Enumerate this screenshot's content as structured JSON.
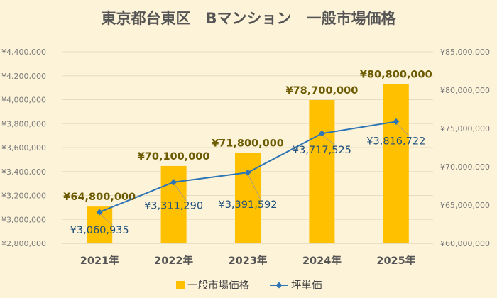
{
  "chart_data": {
    "type": "bar",
    "title": "東京都台東区　Bマンション　一般市場価格",
    "categories": [
      "2021年",
      "2022年",
      "2023年",
      "2024年",
      "2025年"
    ],
    "series": [
      {
        "name": "一般市場価格",
        "type": "bar",
        "axis": "right",
        "color": "#ffc000",
        "values": [
          64800000,
          70100000,
          71800000,
          78700000,
          80800000
        ],
        "labels": [
          "¥64,800,000",
          "¥70,100,000",
          "¥71,800,000",
          "¥78,700,000",
          "¥80,800,000"
        ]
      },
      {
        "name": "坪単価",
        "type": "line",
        "axis": "left",
        "color": "#2e75b6",
        "values": [
          3060935,
          3311290,
          3391592,
          3717525,
          3816722
        ],
        "labels": [
          "¥3,060,935",
          "¥3,311,290",
          "¥3,391,592",
          "¥3,717,525",
          "¥3,816,722"
        ]
      }
    ],
    "y_left": {
      "range": [
        2800000,
        4400000
      ],
      "ticks": [
        2800000,
        3000000,
        3200000,
        3400000,
        3600000,
        3800000,
        4000000,
        4200000,
        4400000
      ],
      "tick_labels": [
        "¥2,800,000",
        "¥3,000,000",
        "¥3,200,000",
        "¥3,400,000",
        "¥3,600,000",
        "¥3,800,000",
        "¥4,000,000",
        "¥4,200,000",
        "¥4,400,000"
      ]
    },
    "y_right": {
      "range": [
        60000000,
        85000000
      ],
      "ticks": [
        60000000,
        65000000,
        70000000,
        75000000,
        80000000,
        85000000
      ],
      "tick_labels": [
        "¥60,000,000",
        "¥65,000,000",
        "¥70,000,000",
        "¥75,000,000",
        "¥80,000,000",
        "¥85,000,000"
      ]
    },
    "grid": true,
    "legend": "bottom"
  }
}
